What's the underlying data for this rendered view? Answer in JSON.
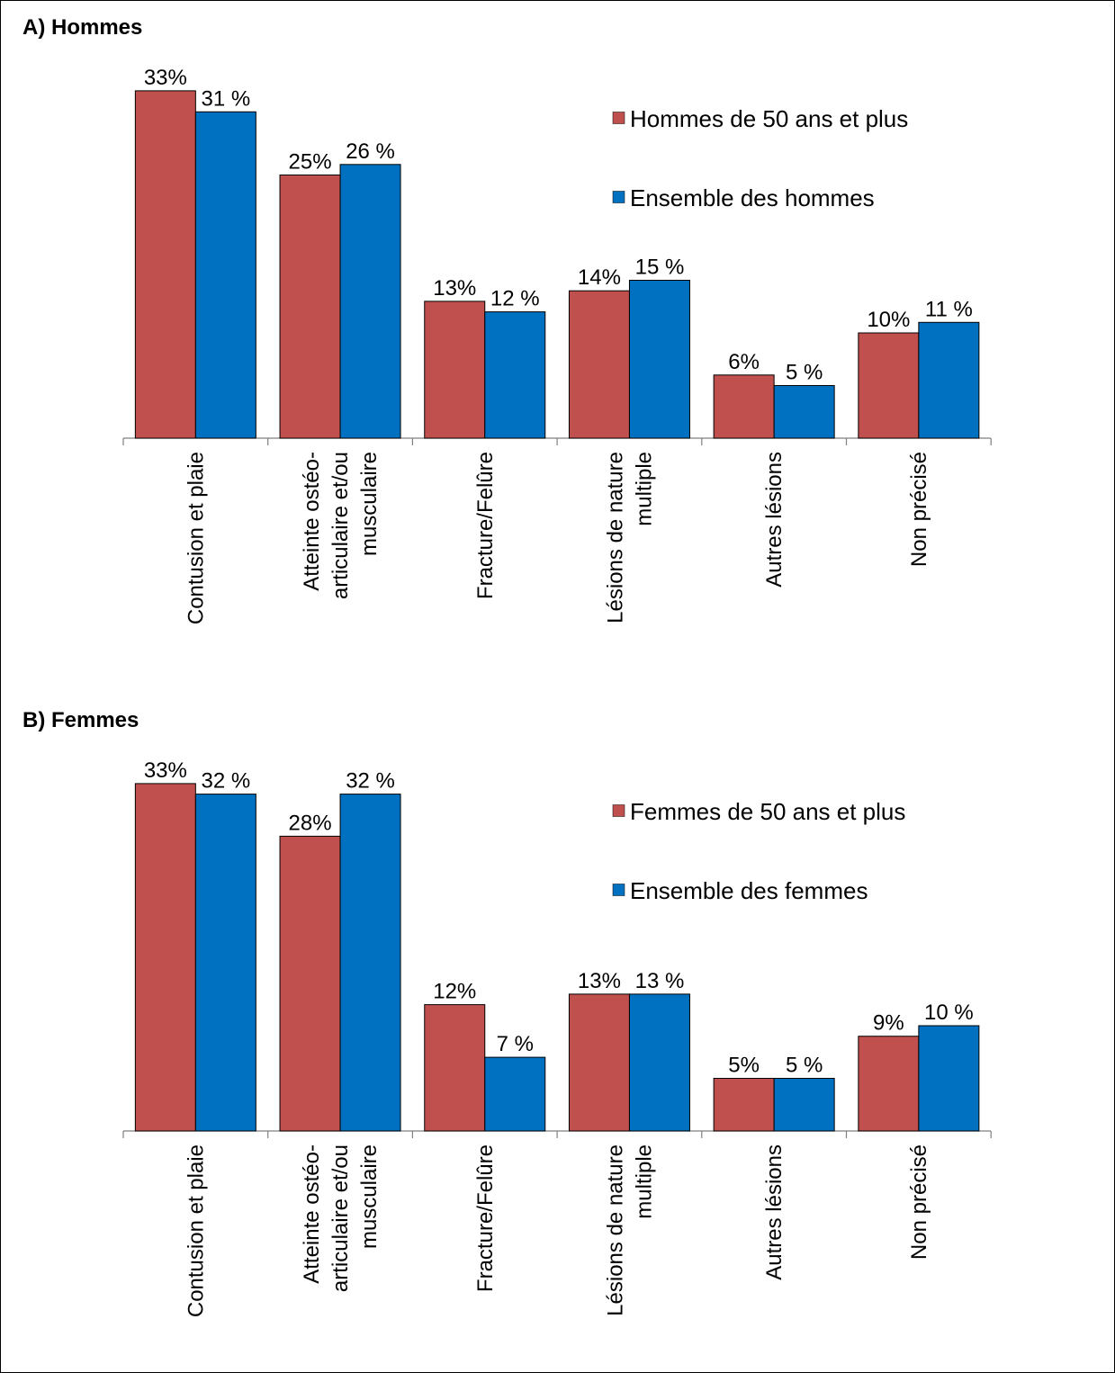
{
  "colors": {
    "series_50plus": "#c0504d",
    "series_all": "#0070c0",
    "axis": "#7f7f7f",
    "bar_stroke": "#000000"
  },
  "chart_data": [
    {
      "type": "bar",
      "title": "A) Hommes",
      "categories": [
        "Contusion et plaie",
        "Atteinte ostéo-articulaire et/ou musculaire",
        "Fracture/Felûre",
        "Lésions de nature multiple",
        "Autres lésions",
        "Non précisé"
      ],
      "category_lines": [
        [
          "Contusion et plaie"
        ],
        [
          "Atteinte ostéo-",
          "articulaire et/ou",
          "musculaire"
        ],
        [
          "Fracture/Felûre"
        ],
        [
          "Lésions de nature",
          "multiple"
        ],
        [
          "Autres lésions"
        ],
        [
          "Non précisé"
        ]
      ],
      "series": [
        {
          "name": "Hommes de 50 ans et plus",
          "values": [
            33,
            25,
            13,
            14,
            6,
            10
          ],
          "labels": [
            "33%",
            "25%",
            "13%",
            "14%",
            "6%",
            "10%"
          ]
        },
        {
          "name": "Ensemble des hommes",
          "values": [
            31,
            26,
            12,
            15,
            5,
            11
          ],
          "labels": [
            "31 %",
            "26 %",
            "12 %",
            "15 %",
            "5 %",
            "11 %"
          ]
        }
      ],
      "ylim": [
        0,
        33
      ],
      "legend": "top-right",
      "grid": false
    },
    {
      "type": "bar",
      "title": "B) Femmes",
      "categories": [
        "Contusion et plaie",
        "Atteinte ostéo-articulaire et/ou musculaire",
        "Fracture/Felûre",
        "Lésions de nature multiple",
        "Autres lésions",
        "Non précisé"
      ],
      "category_lines": [
        [
          "Contusion et plaie"
        ],
        [
          "Atteinte ostéo-",
          "articulaire et/ou",
          "musculaire"
        ],
        [
          "Fracture/Felûre"
        ],
        [
          "Lésions de nature",
          "multiple"
        ],
        [
          "Autres lésions"
        ],
        [
          "Non précisé"
        ]
      ],
      "series": [
        {
          "name": "Femmes de 50 ans et plus",
          "values": [
            33,
            28,
            12,
            13,
            5,
            9
          ],
          "labels": [
            "33%",
            "28%",
            "12%",
            "13%",
            "5%",
            "9%"
          ]
        },
        {
          "name": "Ensemble des femmes",
          "values": [
            32,
            32,
            7,
            13,
            5,
            10
          ],
          "labels": [
            "32 %",
            "32 %",
            "7 %",
            "13 %",
            "5 %",
            "10 %"
          ]
        }
      ],
      "ylim": [
        0,
        33
      ],
      "legend": "top-right",
      "grid": false
    }
  ]
}
